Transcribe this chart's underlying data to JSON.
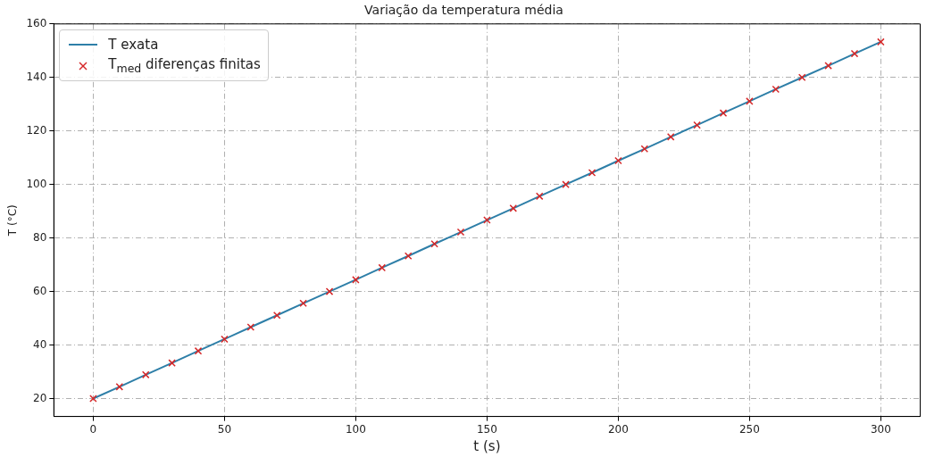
{
  "chart_data": {
    "type": "line",
    "title": "Variação da temperatura média",
    "xlabel": "t (s)",
    "ylabel": "T (°C)",
    "x": [
      0,
      10,
      20,
      30,
      40,
      50,
      60,
      70,
      80,
      90,
      100,
      110,
      120,
      130,
      140,
      150,
      160,
      170,
      180,
      190,
      200,
      210,
      220,
      230,
      240,
      250,
      260,
      270,
      280,
      290,
      300
    ],
    "series": [
      {
        "name": "T exata",
        "color": "#2e7fa8",
        "line_style": "solid",
        "marker": "none",
        "values": [
          20,
          24.4,
          28.9,
          33.3,
          37.8,
          42.2,
          46.7,
          51.1,
          55.6,
          60,
          64.4,
          68.9,
          73.3,
          77.8,
          82.2,
          86.7,
          91.1,
          95.6,
          100,
          104.4,
          108.9,
          113.3,
          117.8,
          122.2,
          126.7,
          131.1,
          135.6,
          140,
          144.4,
          148.9,
          153.3
        ]
      },
      {
        "name": "T$_{med}$ diferenças finitas",
        "type": "scatter",
        "color": "#d62728",
        "marker": "cross",
        "values": [
          20,
          24.4,
          28.9,
          33.3,
          37.8,
          42.2,
          46.7,
          51.1,
          55.6,
          60,
          64.4,
          68.9,
          73.3,
          77.8,
          82.2,
          86.7,
          91.1,
          95.6,
          100,
          104.4,
          108.9,
          113.3,
          117.8,
          122.2,
          126.7,
          131.1,
          135.6,
          140,
          144.4,
          148.9,
          153.3
        ]
      }
    ],
    "xlim": [
      -15,
      315
    ],
    "xticks": [
      0,
      50,
      100,
      150,
      200,
      250,
      300
    ],
    "ylim": [
      13.3,
      160
    ],
    "yticks": [
      20,
      40,
      60,
      80,
      100,
      120,
      140,
      160
    ],
    "grid": true,
    "legend": "top left"
  }
}
